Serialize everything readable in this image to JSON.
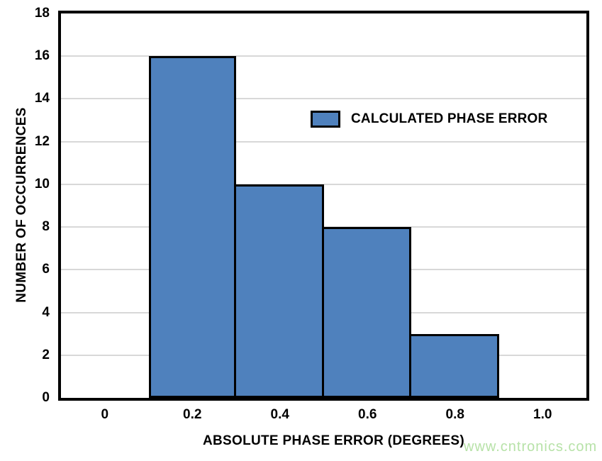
{
  "watermark": "www.cntronics.com",
  "colors": {
    "background": "#FFFFFF",
    "bar_fill": "#4F81BD",
    "bar_border": "#000000",
    "plot_border": "#000000",
    "grid": "#D8D8D8",
    "text": "#000000",
    "watermark": "#B7E2A8"
  },
  "chart_data": {
    "type": "bar",
    "subtype": "histogram",
    "title": "",
    "xlabel": "ABSOLUTE PHASE ERROR (DEGREES)",
    "ylabel": "NUMBER OF OCCURRENCES",
    "legend_label": "CALCULATED PHASE ERROR",
    "legend_position": "inside-upper-right",
    "bars": [
      {
        "bin_start": 0.1,
        "bin_end": 0.3,
        "count": 16
      },
      {
        "bin_start": 0.3,
        "bin_end": 0.5,
        "count": 10
      },
      {
        "bin_start": 0.5,
        "bin_end": 0.7,
        "count": 8
      },
      {
        "bin_start": 0.7,
        "bin_end": 0.9,
        "count": 3
      }
    ],
    "x_ticks": [
      0,
      0.2,
      0.4,
      0.6,
      0.8,
      1.0
    ],
    "x_tick_labels": [
      "0",
      "0.2",
      "0.4",
      "0.6",
      "0.8",
      "1.0"
    ],
    "y_ticks": [
      0,
      2,
      4,
      6,
      8,
      10,
      12,
      14,
      16,
      18
    ],
    "y_tick_labels": [
      "0",
      "2",
      "4",
      "6",
      "8",
      "10",
      "12",
      "14",
      "16",
      "18"
    ],
    "xlim": [
      -0.1,
      1.1
    ],
    "ylim": [
      0,
      18
    ],
    "grid": "horizontal-only",
    "grid_step": 2
  }
}
